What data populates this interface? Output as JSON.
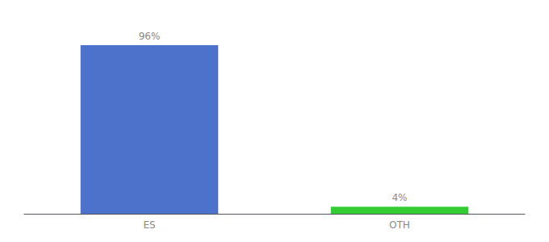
{
  "chart_data": {
    "type": "bar",
    "categories": [
      "ES",
      "OTH"
    ],
    "values": [
      96,
      4
    ],
    "colors": [
      "#4d72cb",
      "#33cc33"
    ],
    "value_labels": [
      "96%",
      "4%"
    ],
    "data_labels": true,
    "ylim": [
      0,
      108
    ],
    "tick_labels": "x",
    "grid": false
  }
}
